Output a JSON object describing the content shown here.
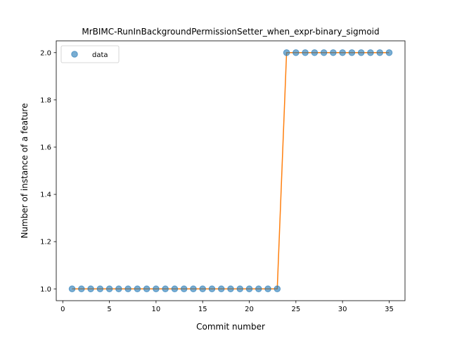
{
  "chart_data": {
    "type": "scatter",
    "title": "MrBIMC-RunInBackgroundPermissionSetter_when_expr-binary_sigmoid",
    "xlabel": "Commit number",
    "ylabel": "Number of instance of a feature",
    "xlim": [
      -0.7,
      36.7
    ],
    "ylim": [
      0.95,
      2.05
    ],
    "xticks": [
      0,
      5,
      10,
      15,
      20,
      25,
      30,
      35
    ],
    "xtick_labels": [
      "0",
      "5",
      "10",
      "15",
      "20",
      "25",
      "30",
      "35"
    ],
    "yticks": [
      1.0,
      1.2,
      1.4,
      1.6,
      1.8,
      2.0
    ],
    "ytick_labels": [
      "1.0",
      "1.2",
      "1.4",
      "1.6",
      "1.8",
      "2.0"
    ],
    "grid": false,
    "legend": {
      "position": "top-left",
      "entries": [
        "data"
      ]
    },
    "series": [
      {
        "name": "data",
        "style": "markers",
        "color": "#1f77b4",
        "x": [
          1,
          2,
          3,
          4,
          5,
          6,
          7,
          8,
          9,
          10,
          11,
          12,
          13,
          14,
          15,
          16,
          17,
          18,
          19,
          20,
          21,
          22,
          23,
          24,
          25,
          26,
          27,
          28,
          29,
          30,
          31,
          32,
          33,
          34,
          35
        ],
        "y": [
          1,
          1,
          1,
          1,
          1,
          1,
          1,
          1,
          1,
          1,
          1,
          1,
          1,
          1,
          1,
          1,
          1,
          1,
          1,
          1,
          1,
          1,
          1,
          2,
          2,
          2,
          2,
          2,
          2,
          2,
          2,
          2,
          2,
          2,
          2
        ]
      },
      {
        "style": "line",
        "color": "#ff7f0e",
        "x": [
          1,
          2,
          3,
          4,
          5,
          6,
          7,
          8,
          9,
          10,
          11,
          12,
          13,
          14,
          15,
          16,
          17,
          18,
          19,
          20,
          21,
          22,
          23,
          24,
          25,
          26,
          27,
          28,
          29,
          30,
          31,
          32,
          33,
          34,
          35
        ],
        "y": [
          1,
          1,
          1,
          1,
          1,
          1,
          1,
          1,
          1,
          1,
          1,
          1,
          1,
          1,
          1,
          1,
          1,
          1,
          1,
          1,
          1,
          1,
          1,
          2,
          2,
          2,
          2,
          2,
          2,
          2,
          2,
          2,
          2,
          2,
          2
        ]
      }
    ]
  }
}
